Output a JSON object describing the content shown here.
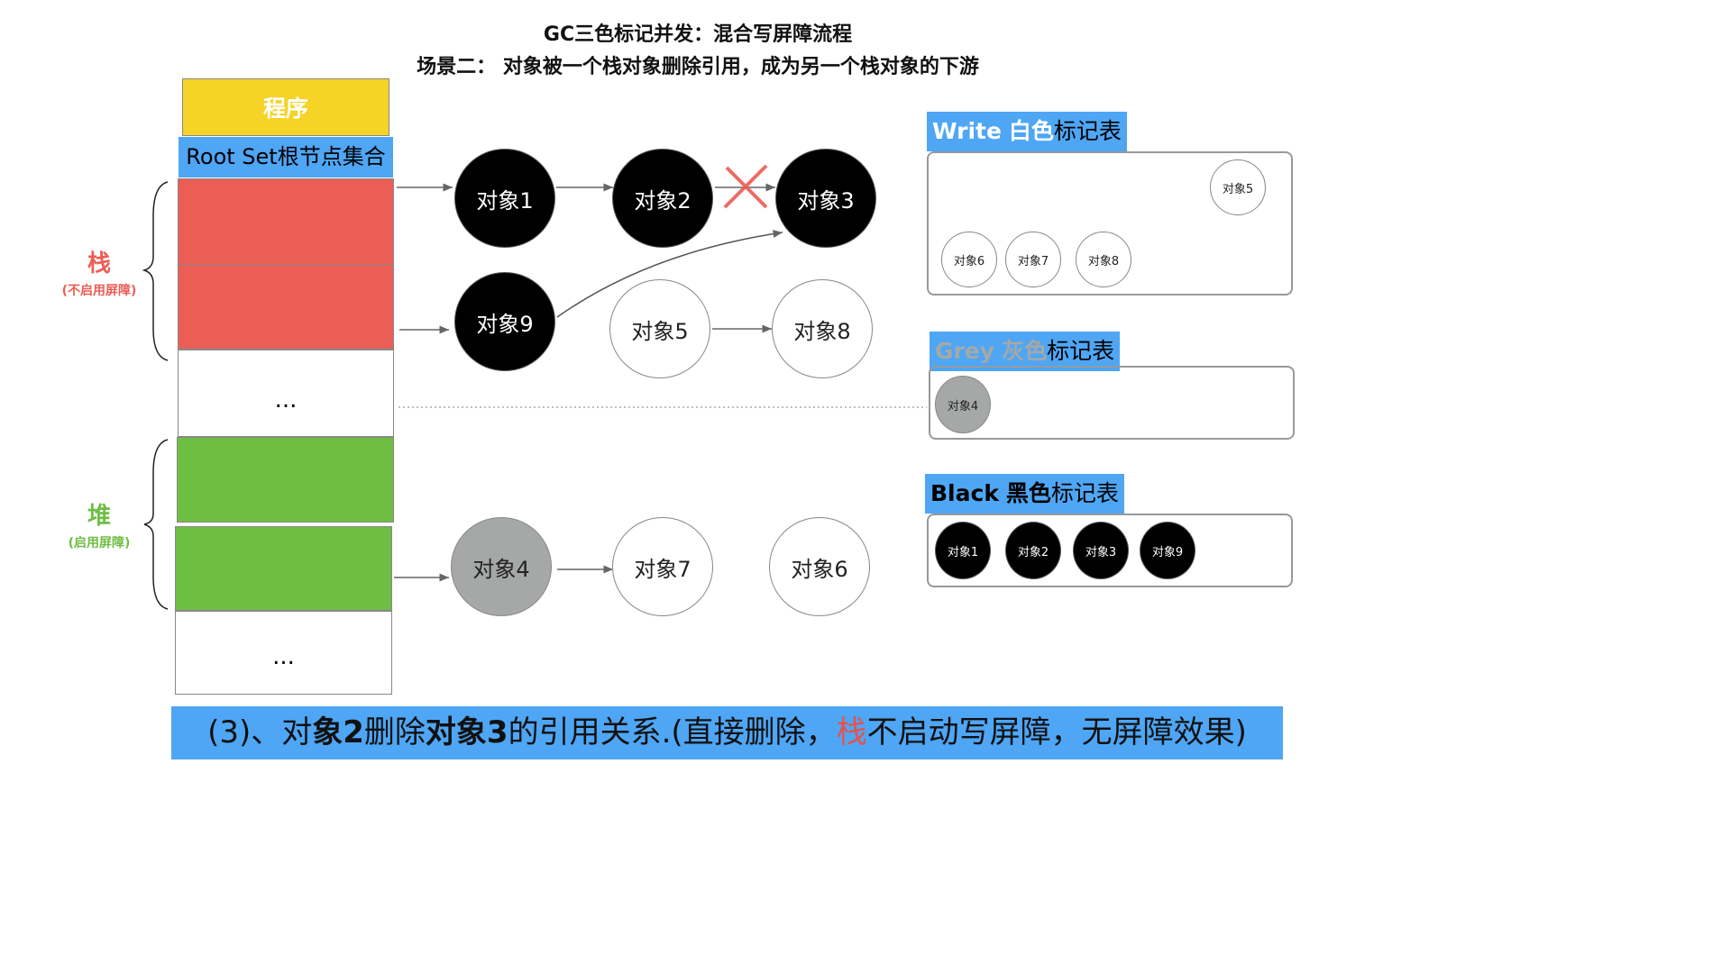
{
  "title": "GC三色标记并发：混合写屏障流程",
  "subtitle": "场景二： 对象被一个栈对象删除引用，成为另一个栈对象的下游",
  "program_label": "程序",
  "rootset_label": "Root Set根节点集合",
  "ellipsis": "...",
  "stack": {
    "label": "栈",
    "note": "(不启用屏障)",
    "color": "#eb5e55"
  },
  "heap": {
    "label": "堆",
    "note": "(启用屏障)",
    "color": "#6fbe44"
  },
  "objects": {
    "o1": "对象1",
    "o2": "对象2",
    "o3": "对象3",
    "o9": "对象9",
    "o5": "对象5",
    "o8": "对象8",
    "o4": "对象4",
    "o7": "对象7",
    "o6": "对象6"
  },
  "tables": {
    "white": {
      "title_en": "Write",
      "title_color": "白色",
      "title_suffix": "标记表",
      "items": [
        "对象5",
        "对象6",
        "对象7",
        "对象8"
      ]
    },
    "grey": {
      "title_en": "Grey",
      "title_color": "灰色",
      "title_suffix": "标记表",
      "items": [
        "对象4"
      ]
    },
    "black": {
      "title_en": "Black",
      "title_color": "黑色",
      "title_suffix": "标记表",
      "items": [
        "对象1",
        "对象2",
        "对象3",
        "对象9"
      ]
    }
  },
  "caption": {
    "p1": "(3)、对",
    "b1": "象2",
    "p2": "删除",
    "b2": "对象3",
    "p3": "的引用关系.(直接删除，",
    "red": "栈",
    "p4": "不启动写屏障，无屏障效果)"
  },
  "colors": {
    "accent_blue": "#4ea6f5",
    "program_yellow": "#f5d327",
    "delete_mark": "#e8524a"
  }
}
